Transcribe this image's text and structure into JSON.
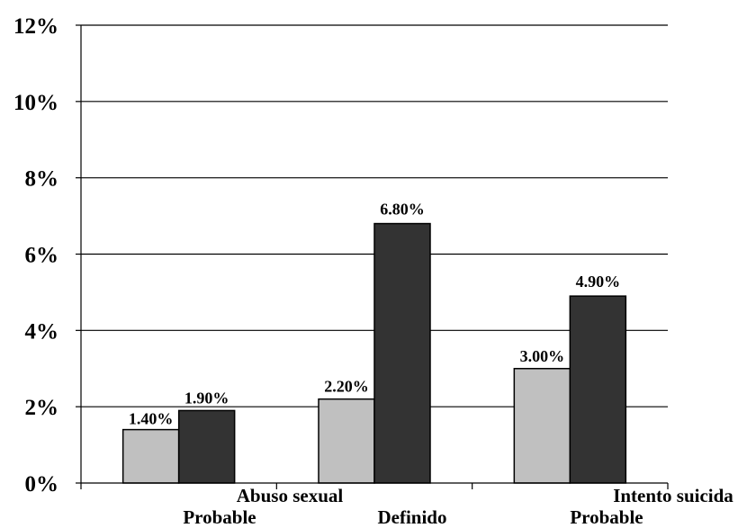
{
  "chart_data": {
    "type": "bar",
    "title": "",
    "xlabel": "",
    "ylabel": "",
    "ylim": [
      0,
      12
    ],
    "y_tick_labels": [
      "0%",
      "2%",
      "4%",
      "6%",
      "8%",
      "10%",
      "12%"
    ],
    "grid": true,
    "legend": "none",
    "category_groups": [
      "Abuso sexual",
      "Intento suicida"
    ],
    "categories": [
      "Probable",
      "Definido",
      "Probable"
    ],
    "series": [
      {
        "values": [
          1.4,
          2.2,
          3.0
        ],
        "labels": [
          "1.40%",
          "2.20%",
          "3.00%"
        ],
        "color": "#c0c0c0"
      },
      {
        "values": [
          1.9,
          6.8,
          4.9
        ],
        "labels": [
          "1.90%",
          "6.80%",
          "4.90%"
        ],
        "color": "#333333"
      }
    ]
  }
}
